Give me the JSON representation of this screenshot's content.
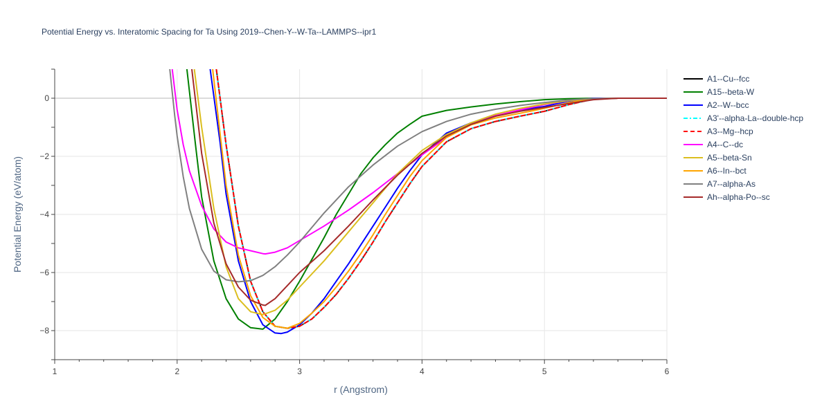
{
  "chart_data": {
    "type": "line",
    "title": "Potential Energy vs. Interatomic Spacing for Ta Using 2019--Chen-Y--W-Ta--LAMMPS--ipr1",
    "xlabel": "r (Angstrom)",
    "ylabel": "Potential Energy (eV/atom)",
    "xlim": [
      1,
      6
    ],
    "ylim": [
      -9,
      1
    ],
    "xticks": [
      1,
      2,
      3,
      4,
      5,
      6
    ],
    "xtick_labels": [
      "1",
      "2",
      "3",
      "4",
      "5",
      "6"
    ],
    "yticks": [
      -8,
      -6,
      -4,
      -2,
      0
    ],
    "ytick_labels": [
      "−8",
      "−6",
      "−4",
      "−2",
      "0"
    ],
    "grid": true,
    "legend_position": "right",
    "series": [
      {
        "name": "A1--Cu--fcc",
        "color": "#000000",
        "dash": "solid",
        "x": [
          2.32,
          2.4,
          2.5,
          2.6,
          2.7,
          2.8,
          2.9,
          3.0,
          3.1,
          3.2,
          3.3,
          3.4,
          3.5,
          3.6,
          3.7,
          3.8,
          3.9,
          4.0,
          4.2,
          4.4,
          4.6,
          4.8,
          5.0,
          5.2,
          5.4,
          5.6,
          6.0
        ],
        "y": [
          1.0,
          -1.6,
          -4.4,
          -6.3,
          -7.35,
          -7.85,
          -7.92,
          -7.85,
          -7.6,
          -7.2,
          -6.75,
          -6.2,
          -5.6,
          -4.95,
          -4.25,
          -3.6,
          -2.95,
          -2.35,
          -1.5,
          -1.05,
          -0.8,
          -0.62,
          -0.45,
          -0.22,
          -0.03,
          0.0,
          0.0
        ]
      },
      {
        "name": "A15--beta-W",
        "color": "#008000",
        "dash": "solid",
        "x": [
          2.08,
          2.15,
          2.2,
          2.3,
          2.4,
          2.5,
          2.6,
          2.7,
          2.8,
          2.9,
          3.0,
          3.1,
          3.2,
          3.3,
          3.4,
          3.5,
          3.6,
          3.7,
          3.8,
          3.9,
          4.0,
          4.2,
          4.4,
          4.6,
          4.8,
          5.0,
          5.2,
          5.4,
          5.6,
          6.0
        ],
        "y": [
          1.0,
          -1.6,
          -3.4,
          -5.6,
          -6.9,
          -7.6,
          -7.9,
          -7.95,
          -7.6,
          -7.0,
          -6.3,
          -5.55,
          -4.8,
          -4.0,
          -3.3,
          -2.6,
          -2.05,
          -1.6,
          -1.2,
          -0.9,
          -0.62,
          -0.42,
          -0.3,
          -0.2,
          -0.12,
          -0.05,
          -0.02,
          0.0,
          0.0,
          0.0
        ]
      },
      {
        "name": "A2--W--bcc",
        "color": "#0000ff",
        "dash": "solid",
        "x": [
          2.27,
          2.35,
          2.4,
          2.5,
          2.6,
          2.7,
          2.8,
          2.85,
          2.9,
          3.0,
          3.1,
          3.2,
          3.3,
          3.4,
          3.5,
          3.6,
          3.7,
          3.8,
          3.9,
          4.0,
          4.2,
          4.4,
          4.6,
          4.8,
          5.0,
          5.2,
          5.4,
          5.6,
          6.0
        ],
        "y": [
          1.0,
          -1.5,
          -3.3,
          -5.6,
          -7.0,
          -7.8,
          -8.08,
          -8.1,
          -8.05,
          -7.8,
          -7.4,
          -6.9,
          -6.3,
          -5.7,
          -5.05,
          -4.4,
          -3.75,
          -3.1,
          -2.5,
          -1.95,
          -1.2,
          -0.85,
          -0.6,
          -0.42,
          -0.28,
          -0.1,
          0.0,
          0.0,
          0.0
        ]
      },
      {
        "name": "A3'--alpha-La--double-hcp",
        "color": "#00ffff",
        "dash": "dashdot",
        "x": [
          2.32,
          2.4,
          2.5,
          2.6,
          2.7,
          2.8,
          2.9,
          3.0,
          3.1,
          3.2,
          3.3,
          3.4,
          3.5,
          3.6,
          3.7,
          3.8,
          3.9,
          4.0,
          4.2,
          4.4,
          4.6,
          4.8,
          5.0,
          5.2,
          5.4,
          5.6,
          6.0
        ],
        "y": [
          1.0,
          -1.6,
          -4.4,
          -6.3,
          -7.35,
          -7.85,
          -7.92,
          -7.85,
          -7.6,
          -7.2,
          -6.75,
          -6.2,
          -5.6,
          -4.95,
          -4.25,
          -3.6,
          -2.95,
          -2.35,
          -1.5,
          -1.05,
          -0.8,
          -0.62,
          -0.45,
          -0.22,
          -0.03,
          0.0,
          0.0
        ]
      },
      {
        "name": "A3--Mg--hcp",
        "color": "#ff0000",
        "dash": "dash",
        "x": [
          2.32,
          2.4,
          2.5,
          2.6,
          2.7,
          2.8,
          2.9,
          3.0,
          3.1,
          3.2,
          3.3,
          3.4,
          3.5,
          3.6,
          3.7,
          3.8,
          3.9,
          4.0,
          4.2,
          4.4,
          4.6,
          4.8,
          5.0,
          5.2,
          5.4,
          5.6,
          6.0
        ],
        "y": [
          1.0,
          -1.6,
          -4.4,
          -6.3,
          -7.35,
          -7.85,
          -7.92,
          -7.85,
          -7.6,
          -7.2,
          -6.75,
          -6.2,
          -5.6,
          -4.95,
          -4.25,
          -3.6,
          -2.95,
          -2.35,
          -1.5,
          -1.05,
          -0.8,
          -0.62,
          -0.45,
          -0.22,
          -0.03,
          0.0,
          0.0
        ]
      },
      {
        "name": "A4--C--dc",
        "color": "#ff00ff",
        "dash": "solid",
        "x": [
          1.96,
          2.0,
          2.05,
          2.1,
          2.2,
          2.3,
          2.4,
          2.5,
          2.6,
          2.7,
          2.72,
          2.8,
          2.9,
          3.0,
          3.2,
          3.4,
          3.6,
          3.8,
          4.0,
          4.2,
          4.4,
          4.6,
          4.8,
          5.0,
          5.2,
          5.4,
          5.6,
          6.0
        ],
        "y": [
          1.0,
          -0.4,
          -1.6,
          -2.5,
          -3.7,
          -4.5,
          -4.95,
          -5.15,
          -5.25,
          -5.35,
          -5.36,
          -5.3,
          -5.15,
          -4.9,
          -4.4,
          -3.85,
          -3.25,
          -2.6,
          -1.95,
          -1.35,
          -0.9,
          -0.6,
          -0.4,
          -0.22,
          -0.08,
          -0.02,
          0.0,
          0.0
        ]
      },
      {
        "name": "A5--beta-Sn",
        "color": "#dbbe1e",
        "dash": "solid",
        "x": [
          2.14,
          2.2,
          2.3,
          2.4,
          2.5,
          2.6,
          2.7,
          2.8,
          2.9,
          3.0,
          3.2,
          3.4,
          3.6,
          3.8,
          4.0,
          4.2,
          4.4,
          4.6,
          4.8,
          5.0,
          5.2,
          5.4,
          5.6,
          6.0
        ],
        "y": [
          1.0,
          -1.0,
          -3.8,
          -5.8,
          -6.9,
          -7.35,
          -7.45,
          -7.3,
          -6.95,
          -6.5,
          -5.6,
          -4.6,
          -3.6,
          -2.6,
          -1.8,
          -1.25,
          -0.85,
          -0.55,
          -0.35,
          -0.2,
          -0.08,
          -0.02,
          0.0,
          0.0
        ]
      },
      {
        "name": "A6--In--bct",
        "color": "#ffa500",
        "dash": "solid",
        "x": [
          2.29,
          2.35,
          2.4,
          2.5,
          2.6,
          2.7,
          2.8,
          2.9,
          3.0,
          3.1,
          3.2,
          3.3,
          3.4,
          3.5,
          3.6,
          3.7,
          3.8,
          3.9,
          4.0,
          4.2,
          4.4,
          4.6,
          4.8,
          5.0,
          5.2,
          5.4,
          5.6,
          6.0
        ],
        "y": [
          1.0,
          -1.2,
          -3.0,
          -5.4,
          -6.8,
          -7.55,
          -7.85,
          -7.92,
          -7.75,
          -7.4,
          -7.0,
          -6.5,
          -5.95,
          -5.35,
          -4.7,
          -4.0,
          -3.35,
          -2.7,
          -2.15,
          -1.35,
          -0.92,
          -0.68,
          -0.52,
          -0.35,
          -0.15,
          -0.02,
          0.0,
          0.0
        ]
      },
      {
        "name": "A7--alpha-As",
        "color": "#808080",
        "dash": "solid",
        "x": [
          1.94,
          1.98,
          2.0,
          2.05,
          2.1,
          2.2,
          2.3,
          2.4,
          2.5,
          2.6,
          2.7,
          2.8,
          2.9,
          3.0,
          3.2,
          3.4,
          3.6,
          3.8,
          4.0,
          4.2,
          4.4,
          4.6,
          4.8,
          5.0,
          5.2,
          5.4,
          5.6,
          6.0
        ],
        "y": [
          1.0,
          -0.6,
          -1.3,
          -2.7,
          -3.8,
          -5.2,
          -5.95,
          -6.25,
          -6.32,
          -6.28,
          -6.1,
          -5.8,
          -5.4,
          -4.95,
          -3.95,
          -3.05,
          -2.3,
          -1.65,
          -1.15,
          -0.8,
          -0.55,
          -0.38,
          -0.25,
          -0.15,
          -0.06,
          -0.01,
          0.0,
          0.0
        ]
      },
      {
        "name": "Ah--alpha-Po--sc",
        "color": "#a52a2a",
        "dash": "solid",
        "x": [
          2.12,
          2.2,
          2.3,
          2.4,
          2.5,
          2.6,
          2.7,
          2.72,
          2.8,
          2.9,
          3.0,
          3.2,
          3.4,
          3.6,
          3.8,
          4.0,
          4.2,
          4.4,
          4.6,
          4.8,
          5.0,
          5.2,
          5.4,
          5.6,
          6.0
        ],
        "y": [
          1.0,
          -1.9,
          -4.3,
          -5.7,
          -6.5,
          -6.95,
          -7.12,
          -7.13,
          -6.9,
          -6.45,
          -6.0,
          -5.25,
          -4.4,
          -3.5,
          -2.65,
          -1.9,
          -1.3,
          -0.9,
          -0.62,
          -0.45,
          -0.32,
          -0.18,
          -0.05,
          0.0,
          0.0
        ]
      }
    ]
  }
}
